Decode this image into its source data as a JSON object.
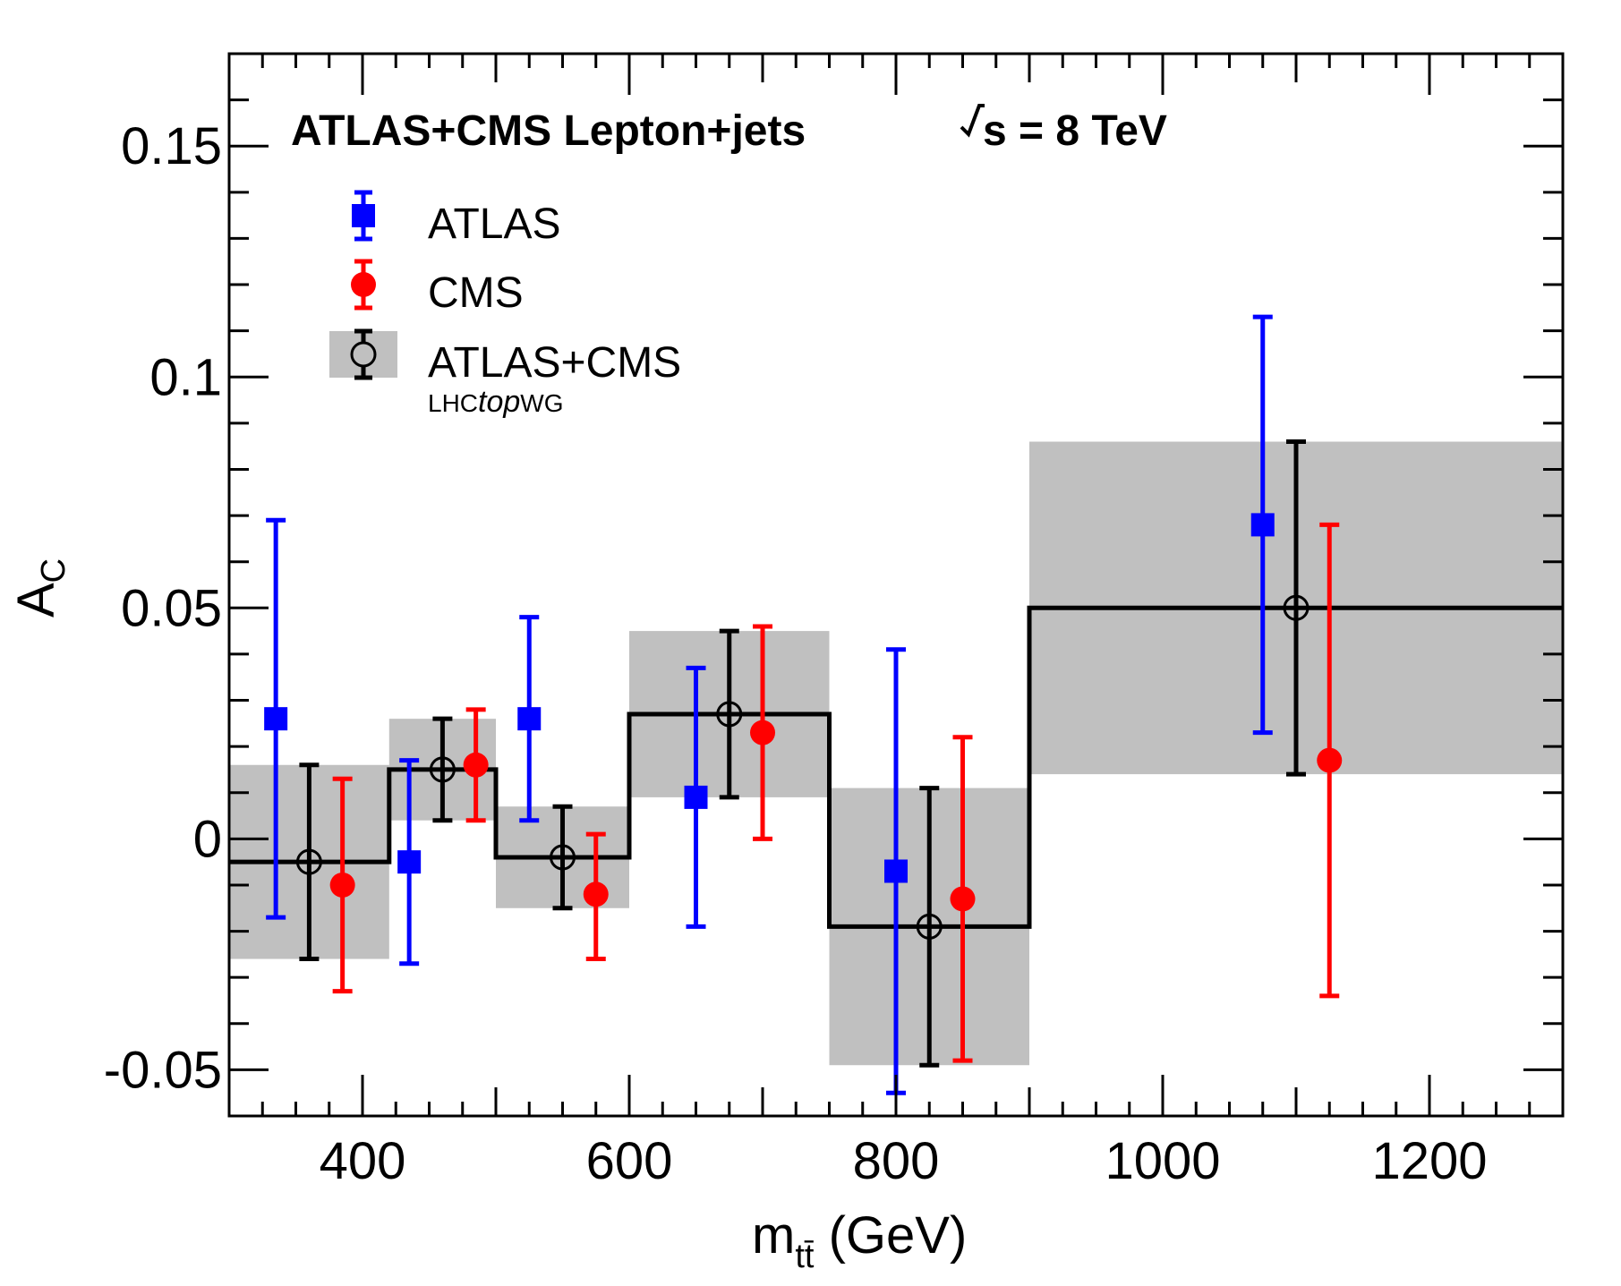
{
  "chart_data": {
    "type": "scatter",
    "header": {
      "experiment_label": "ATLAS+CMS Lepton+jets",
      "energy_s": "s",
      "energy_rest": " = 8 TeV"
    },
    "xlabel": {
      "main": "m",
      "subscript": "tt̄",
      "unit": " (GeV)"
    },
    "ylabel": {
      "main": "A",
      "subscript": "C"
    },
    "xlim": [
      300,
      1300
    ],
    "ylim": [
      -0.06,
      0.17
    ],
    "x_ticks": [
      {
        "value": 400,
        "label": "400"
      },
      {
        "value": 600,
        "label": "600"
      },
      {
        "value": 800,
        "label": "800"
      },
      {
        "value": 1000,
        "label": "1000"
      },
      {
        "value": 1200,
        "label": "1200"
      }
    ],
    "y_ticks": [
      {
        "value": -0.05,
        "label": "-0.05"
      },
      {
        "value": 0,
        "label": "0"
      },
      {
        "value": 0.05,
        "label": "0.05"
      },
      {
        "value": 0.1,
        "label": "0.1"
      },
      {
        "value": 0.15,
        "label": "0.15"
      }
    ],
    "legend": {
      "placement": "top-left",
      "entries": [
        {
          "name": "ATLAS",
          "color": "#0000ff",
          "marker": "square"
        },
        {
          "name": "CMS",
          "color": "#ff0000",
          "marker": "circle"
        },
        {
          "name": "ATLAS+CMS",
          "color": "#000000",
          "marker": "open-circle",
          "band_color": "#c0c0c0"
        }
      ],
      "note_prefix": "LHC",
      "note_italic": "top",
      "note_suffix": "WG"
    },
    "combined_bins": [
      {
        "x_low": 300,
        "x_high": 420,
        "value": -0.005,
        "band_low": -0.026,
        "band_high": 0.016
      },
      {
        "x_low": 420,
        "x_high": 500,
        "value": 0.015,
        "band_low": 0.004,
        "band_high": 0.026
      },
      {
        "x_low": 500,
        "x_high": 600,
        "value": -0.004,
        "band_low": -0.015,
        "band_high": 0.007
      },
      {
        "x_low": 600,
        "x_high": 750,
        "value": 0.027,
        "band_low": 0.009,
        "band_high": 0.045
      },
      {
        "x_low": 750,
        "x_high": 900,
        "value": -0.019,
        "band_low": -0.049,
        "band_high": 0.011
      },
      {
        "x_low": 900,
        "x_high": 1300,
        "value": 0.05,
        "band_low": 0.014,
        "band_high": 0.086
      }
    ],
    "series": [
      {
        "name": "ATLAS",
        "color": "#0000ff",
        "marker": "square",
        "points": [
          {
            "x": 335,
            "y": 0.026,
            "y_low": -0.017,
            "y_high": 0.069
          },
          {
            "x": 435,
            "y": -0.005,
            "y_low": -0.027,
            "y_high": 0.017
          },
          {
            "x": 525,
            "y": 0.026,
            "y_low": 0.004,
            "y_high": 0.048
          },
          {
            "x": 650,
            "y": 0.009,
            "y_low": -0.019,
            "y_high": 0.037
          },
          {
            "x": 800,
            "y": -0.007,
            "y_low": -0.055,
            "y_high": 0.041
          },
          {
            "x": 1075,
            "y": 0.068,
            "y_low": 0.023,
            "y_high": 0.113
          }
        ]
      },
      {
        "name": "ATLAS+CMS",
        "color": "#000000",
        "marker": "open-circle",
        "points": [
          {
            "x": 360,
            "y": -0.005,
            "y_low": -0.026,
            "y_high": 0.016
          },
          {
            "x": 460,
            "y": 0.015,
            "y_low": 0.004,
            "y_high": 0.026
          },
          {
            "x": 550,
            "y": -0.004,
            "y_low": -0.015,
            "y_high": 0.007
          },
          {
            "x": 675,
            "y": 0.027,
            "y_low": 0.009,
            "y_high": 0.045
          },
          {
            "x": 825,
            "y": -0.019,
            "y_low": -0.049,
            "y_high": 0.011
          },
          {
            "x": 1100,
            "y": 0.05,
            "y_low": 0.014,
            "y_high": 0.086
          }
        ]
      },
      {
        "name": "CMS",
        "color": "#ff0000",
        "marker": "circle",
        "points": [
          {
            "x": 385,
            "y": -0.01,
            "y_low": -0.033,
            "y_high": 0.013
          },
          {
            "x": 485,
            "y": 0.016,
            "y_low": 0.004,
            "y_high": 0.028
          },
          {
            "x": 575,
            "y": -0.012,
            "y_low": -0.026,
            "y_high": 0.001
          },
          {
            "x": 700,
            "y": 0.023,
            "y_low": 0.0,
            "y_high": 0.046
          },
          {
            "x": 850,
            "y": -0.013,
            "y_low": -0.048,
            "y_high": 0.022
          },
          {
            "x": 1125,
            "y": 0.017,
            "y_low": -0.034,
            "y_high": 0.068
          }
        ]
      }
    ]
  }
}
